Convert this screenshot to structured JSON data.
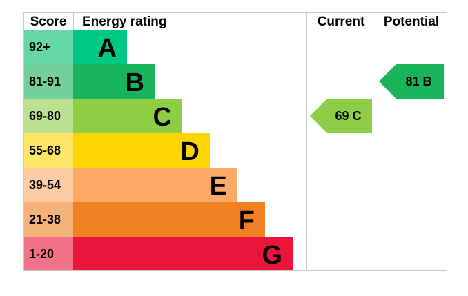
{
  "chart_data": {
    "type": "table",
    "headers": {
      "score": "Score",
      "rating": "Energy rating",
      "current": "Current",
      "potential": "Potential"
    },
    "bands": [
      {
        "score": "92+",
        "letter": "A",
        "color": "#00c781",
        "score_bg": "#66d7a7"
      },
      {
        "score": "81-91",
        "letter": "B",
        "color": "#19b459",
        "score_bg": "#75cf9a"
      },
      {
        "score": "69-80",
        "letter": "C",
        "color": "#8dce46",
        "score_bg": "#bbe290"
      },
      {
        "score": "55-68",
        "letter": "D",
        "color": "#ffd500",
        "score_bg": "#ffe666"
      },
      {
        "score": "39-54",
        "letter": "E",
        "color": "#fcaa65",
        "score_bg": "#fdcca3"
      },
      {
        "score": "21-38",
        "letter": "F",
        "color": "#ef8023",
        "score_bg": "#f5b37b"
      },
      {
        "score": "1-20",
        "letter": "G",
        "color": "#e9153b",
        "score_bg": "#f27389"
      }
    ],
    "current": {
      "value": 69,
      "letter": "C",
      "band": "C",
      "color": "#8dce46"
    },
    "potential": {
      "value": 81,
      "letter": "B",
      "band": "B",
      "color": "#19b459"
    }
  }
}
